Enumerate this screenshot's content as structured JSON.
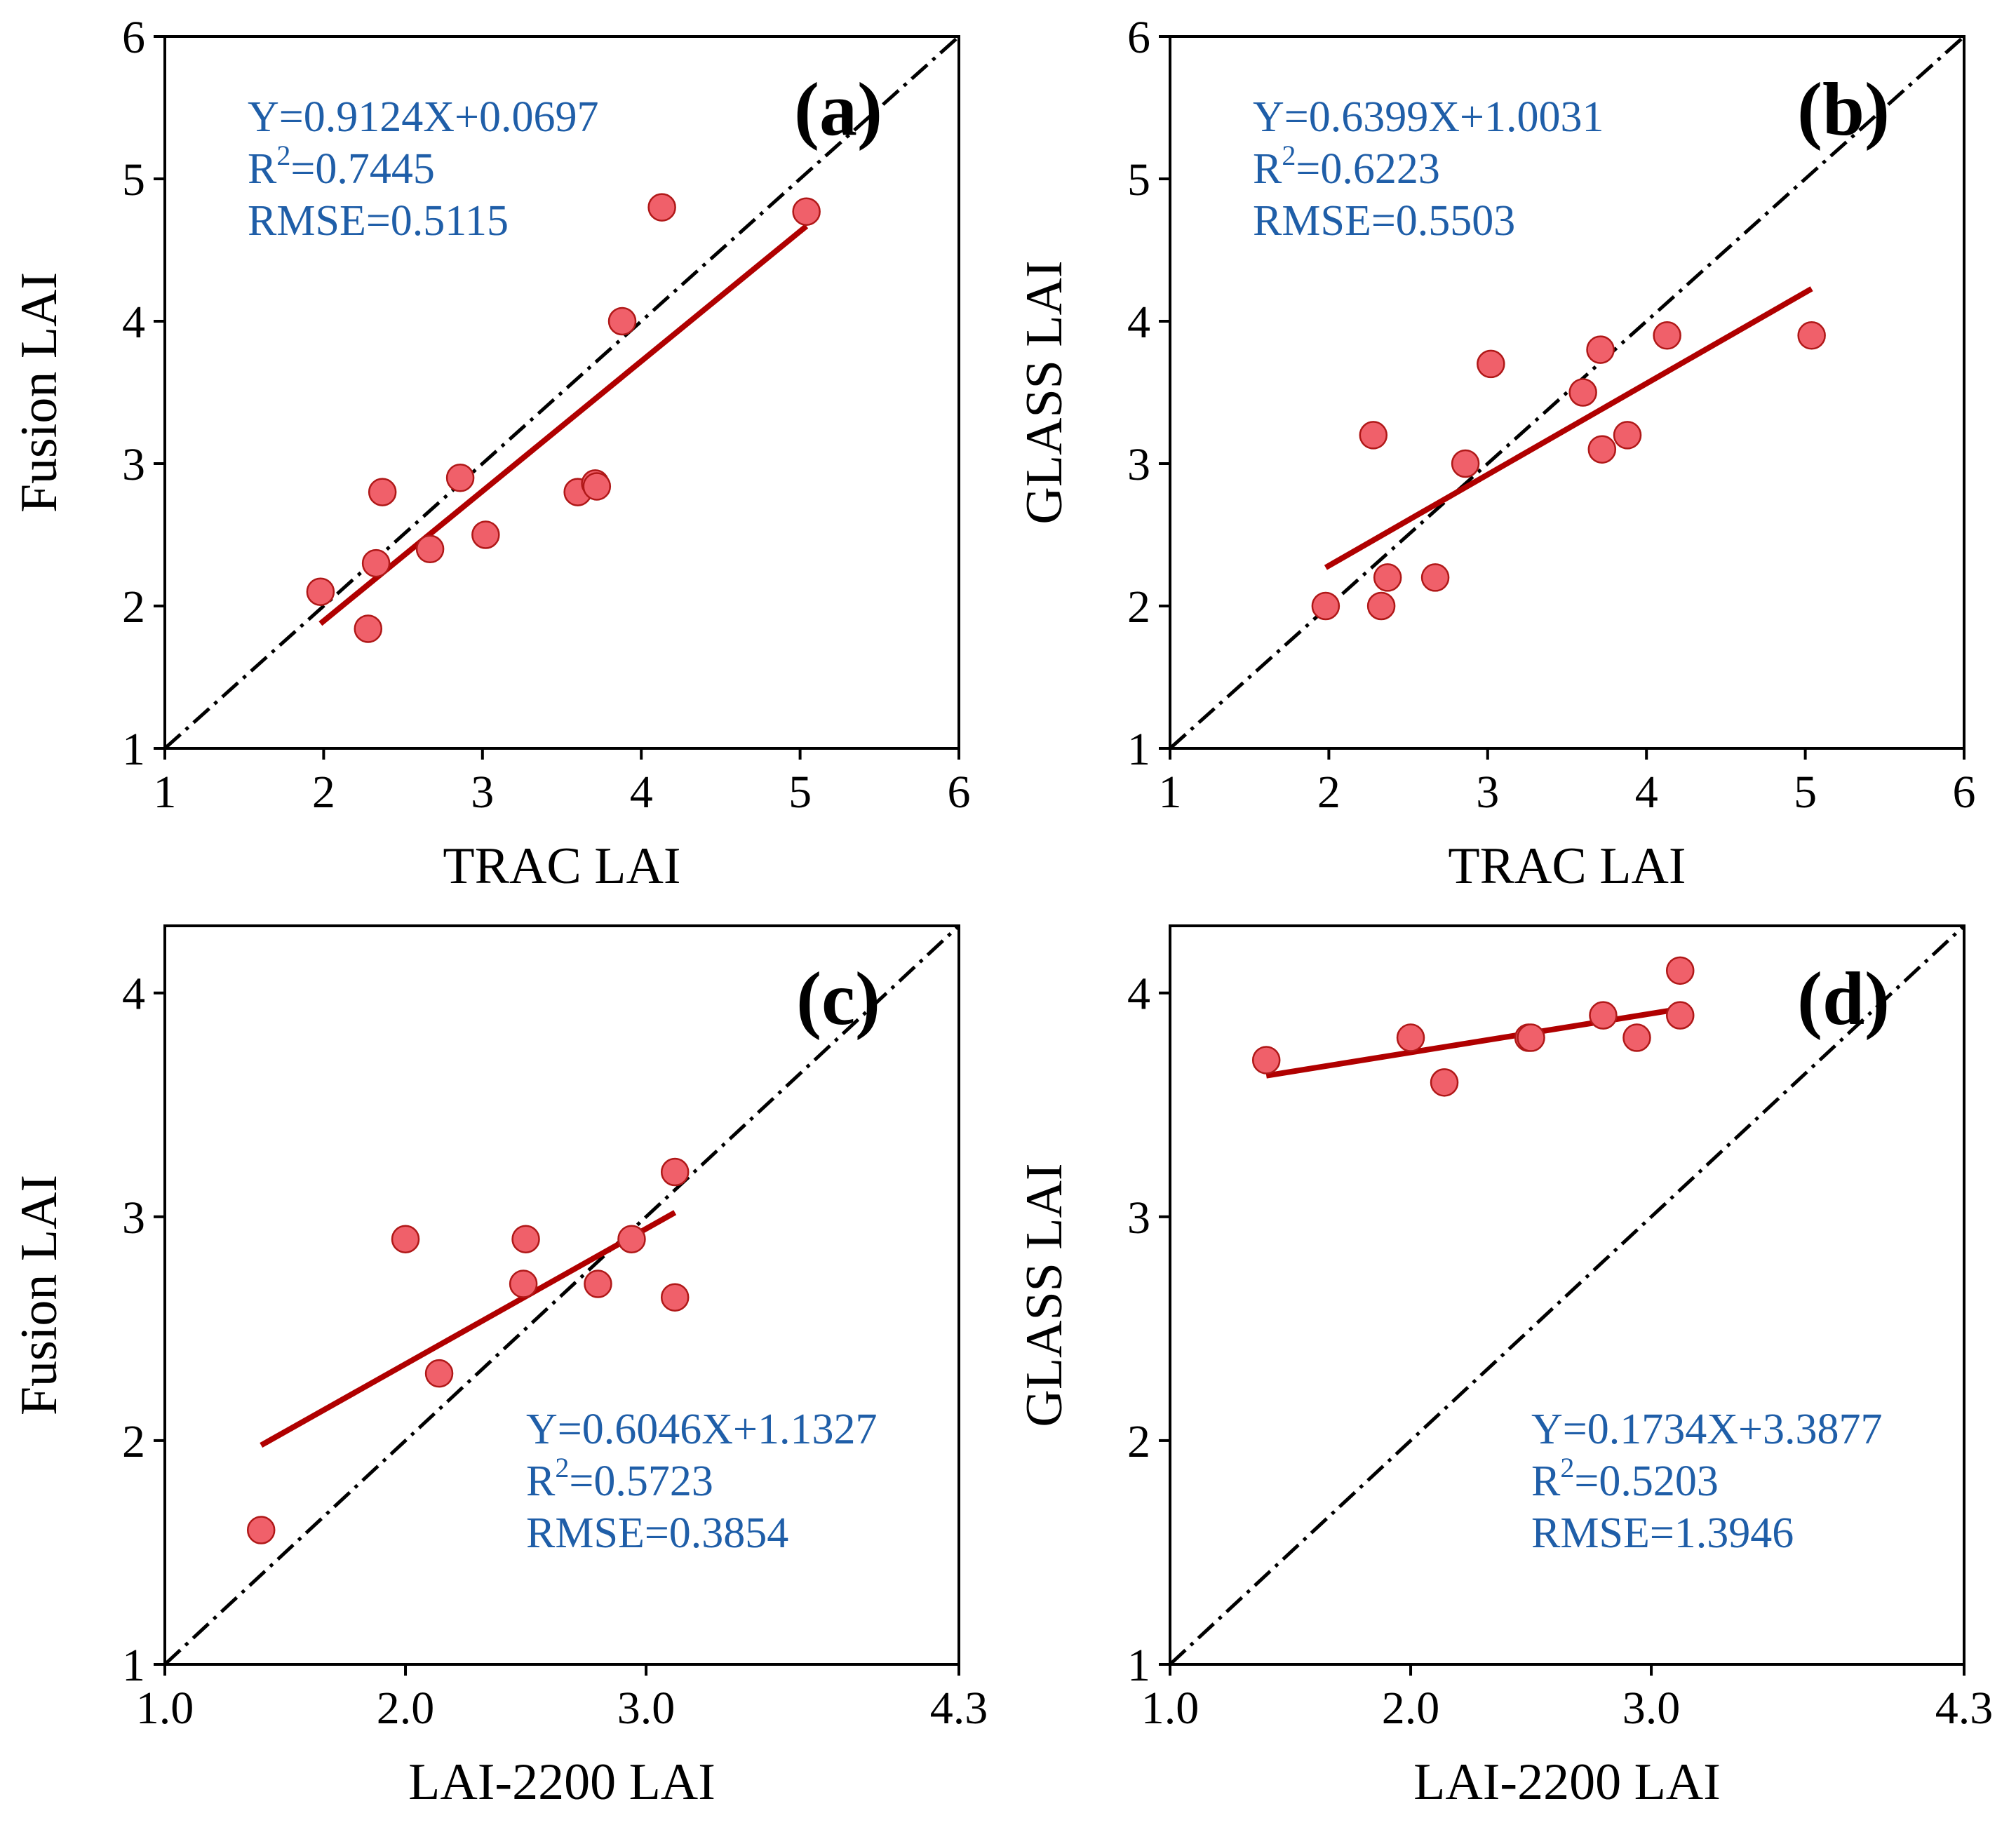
{
  "chart_data": [
    {
      "type": "scatter",
      "panel_label": "(a)",
      "xlabel": "TRAC LAI",
      "ylabel": "Fusion LAI",
      "xlim": [
        1,
        6
      ],
      "ylim": [
        1,
        6
      ],
      "xticks": [
        1,
        2,
        3,
        4,
        5,
        6
      ],
      "yticks": [
        1,
        2,
        3,
        4,
        5,
        6
      ],
      "xtick_labels": [
        "1",
        "2",
        "3",
        "4",
        "5",
        "6"
      ],
      "ytick_labels": [
        "1",
        "2",
        "3",
        "4",
        "5",
        "6"
      ],
      "points": [
        [
          1.98,
          2.1
        ],
        [
          2.28,
          1.84
        ],
        [
          2.33,
          2.3
        ],
        [
          2.37,
          2.8
        ],
        [
          2.67,
          2.4
        ],
        [
          2.86,
          2.9
        ],
        [
          3.02,
          2.5
        ],
        [
          3.6,
          2.8
        ],
        [
          3.71,
          2.86
        ],
        [
          3.72,
          2.84
        ],
        [
          3.88,
          4.0
        ],
        [
          4.13,
          4.8
        ],
        [
          5.04,
          4.77
        ]
      ],
      "fit": {
        "slope": 0.9124,
        "intercept": 0.0697,
        "x_range": [
          1.98,
          5.04
        ]
      },
      "identity_line": true,
      "annotation_position": "top-left",
      "annotation": {
        "equation": "Y=0.9124X+0.0697",
        "r2_prefix": "R",
        "r2_sup": "2",
        "r2_value": "=0.7445",
        "rmse": "RMSE=0.5115"
      }
    },
    {
      "type": "scatter",
      "panel_label": "(b)",
      "xlabel": "TRAC LAI",
      "ylabel": "GLASS LAI",
      "xlim": [
        1,
        6
      ],
      "ylim": [
        1,
        6
      ],
      "xticks": [
        1,
        2,
        3,
        4,
        5,
        6
      ],
      "yticks": [
        1,
        2,
        3,
        4,
        5,
        6
      ],
      "xtick_labels": [
        "1",
        "2",
        "3",
        "4",
        "5",
        "6"
      ],
      "ytick_labels": [
        "1",
        "2",
        "3",
        "4",
        "5",
        "6"
      ],
      "points": [
        [
          1.98,
          2.0
        ],
        [
          2.28,
          3.2
        ],
        [
          2.33,
          2.0
        ],
        [
          2.37,
          2.2
        ],
        [
          2.67,
          2.2
        ],
        [
          2.86,
          3.0
        ],
        [
          3.02,
          3.7
        ],
        [
          3.6,
          3.5
        ],
        [
          3.71,
          3.8
        ],
        [
          3.72,
          3.1
        ],
        [
          3.88,
          3.2
        ],
        [
          4.13,
          3.9
        ],
        [
          5.04,
          3.9
        ]
      ],
      "fit": {
        "slope": 0.6399,
        "intercept": 1.0031,
        "x_range": [
          1.98,
          5.04
        ]
      },
      "identity_line": true,
      "annotation_position": "top-left",
      "annotation": {
        "equation": "Y=0.6399X+1.0031",
        "r2_prefix": "R",
        "r2_sup": "2",
        "r2_value": "=0.6223",
        "rmse": "RMSE=0.5503"
      }
    },
    {
      "type": "scatter",
      "panel_label": "(c)",
      "xlabel": "LAI-2200 LAI",
      "ylabel": "Fusion LAI",
      "xlim": [
        1.0,
        4.3
      ],
      "ylim": [
        1,
        4.3
      ],
      "xticks": [
        1.0,
        2.0,
        3.0,
        4.3
      ],
      "yticks": [
        1,
        2,
        3,
        4
      ],
      "xtick_labels": [
        "1.0",
        "2.0",
        "3.0",
        "4.3"
      ],
      "ytick_labels": [
        "1",
        "2",
        "3",
        "4"
      ],
      "points": [
        [
          1.4,
          1.6
        ],
        [
          2.0,
          2.9
        ],
        [
          2.14,
          2.3
        ],
        [
          2.49,
          2.7
        ],
        [
          2.5,
          2.9
        ],
        [
          2.8,
          2.7
        ],
        [
          2.94,
          2.9
        ],
        [
          3.12,
          3.2
        ],
        [
          3.12,
          2.64
        ]
      ],
      "fit": {
        "slope": 0.6046,
        "intercept": 1.1327,
        "x_range": [
          1.4,
          3.12
        ]
      },
      "identity_line": true,
      "annotation_position": "bottom-right",
      "annotation": {
        "equation": "Y=0.6046X+1.1327",
        "r2_prefix": "R",
        "r2_sup": "2",
        "r2_value": "=0.5723",
        "rmse": "RMSE=0.3854"
      }
    },
    {
      "type": "scatter",
      "panel_label": "(d)",
      "xlabel": "LAI-2200 LAI",
      "ylabel": "GLASS LAI",
      "xlim": [
        1.0,
        4.3
      ],
      "ylim": [
        1,
        4.3
      ],
      "xticks": [
        1.0,
        2.0,
        3.0,
        4.3
      ],
      "yticks": [
        1,
        2,
        3,
        4
      ],
      "xtick_labels": [
        "1.0",
        "2.0",
        "3.0",
        "4.3"
      ],
      "ytick_labels": [
        "1",
        "2",
        "3",
        "4"
      ],
      "points": [
        [
          1.4,
          3.7
        ],
        [
          2.0,
          3.8
        ],
        [
          2.14,
          3.6
        ],
        [
          2.49,
          3.8
        ],
        [
          2.5,
          3.8
        ],
        [
          2.8,
          3.9
        ],
        [
          2.94,
          3.8
        ],
        [
          3.12,
          4.1
        ],
        [
          3.12,
          3.9
        ]
      ],
      "fit": {
        "slope": 0.1734,
        "intercept": 3.3877,
        "x_range": [
          1.4,
          3.12
        ]
      },
      "identity_line": true,
      "annotation_position": "bottom-right",
      "annotation": {
        "equation": "Y=0.1734X+3.3877",
        "r2_prefix": "R",
        "r2_sup": "2",
        "r2_value": "=0.5203",
        "rmse": "RMSE=1.3946"
      }
    }
  ],
  "colors": {
    "points_fill": "#f0606a",
    "points_edge": "#b01818",
    "fit_line": "#b00000",
    "annotation_text": "#1f5ea8",
    "identity_line": "#000000"
  }
}
